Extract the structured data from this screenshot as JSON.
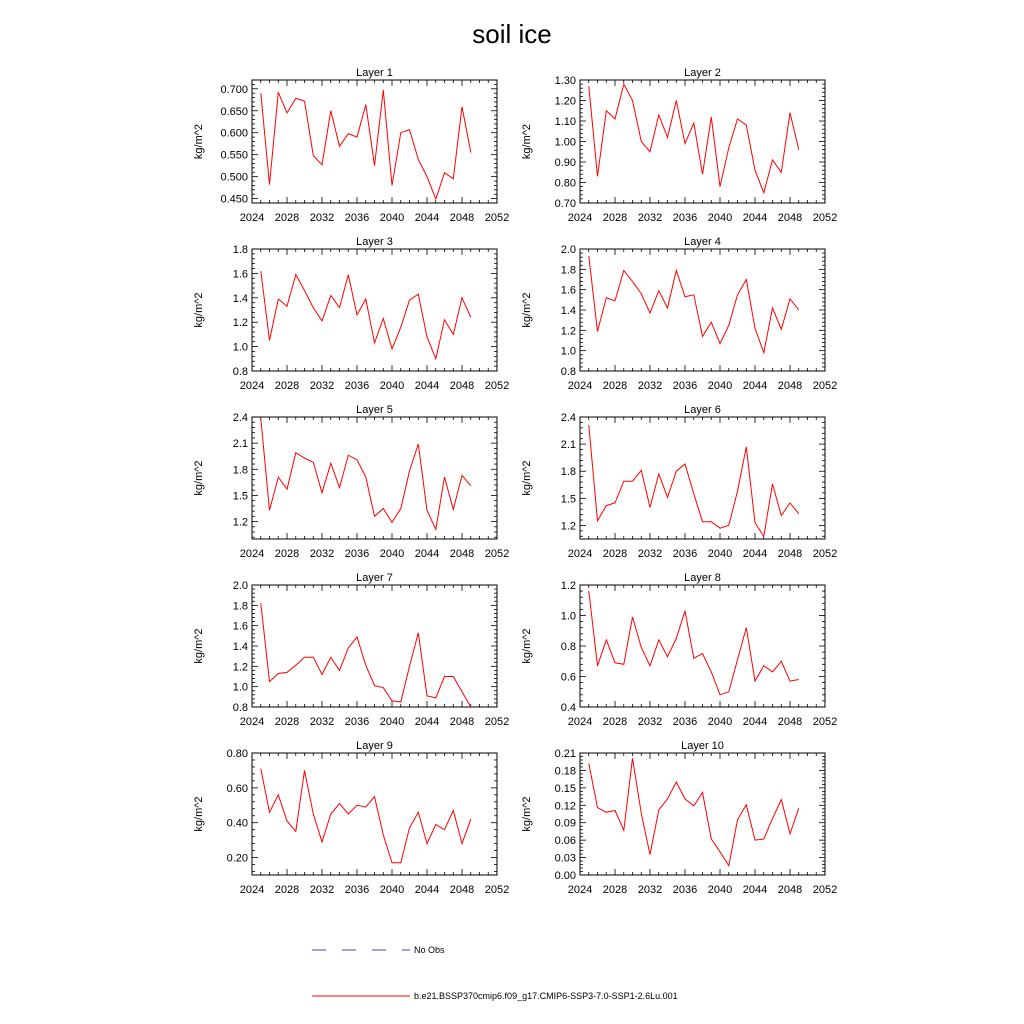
{
  "title": "soil ice",
  "colors": {
    "series": "#ff0000",
    "no_obs": "#4a4aa8",
    "axis": "#000000"
  },
  "legend": {
    "no_obs_label": "No Obs",
    "series_label": "b.e21.BSSP370cmip6.f09_g17.CMIP6-SSP3-7.0-SSP1-2.6Lu.001"
  },
  "chart_data": [
    {
      "type": "line",
      "title": "Layer 1",
      "ylabel": "kg/m^2",
      "xlim": [
        2024,
        2052
      ],
      "ylim": [
        0.44,
        0.72
      ],
      "x_ticks": [
        "2024",
        "2028",
        "2032",
        "2036",
        "2040",
        "2044",
        "2048",
        "2052"
      ],
      "y_ticks": [
        "0.450",
        "0.500",
        "0.550",
        "0.600",
        "0.650",
        "0.700"
      ],
      "series": [
        {
          "x": [
            2025,
            2026,
            2027,
            2028,
            2029,
            2030,
            2031,
            2032,
            2033,
            2034,
            2035,
            2036,
            2037,
            2038,
            2039,
            2040,
            2041,
            2042,
            2043,
            2044,
            2045,
            2046,
            2047,
            2048,
            2049
          ],
          "values": [
            0.69,
            0.482,
            0.692,
            0.645,
            0.678,
            0.672,
            0.548,
            0.527,
            0.65,
            0.569,
            0.598,
            0.59,
            0.664,
            0.525,
            0.697,
            0.48,
            0.6,
            0.607,
            0.539,
            0.5,
            0.449,
            0.509,
            0.495,
            0.659,
            0.555
          ]
        }
      ]
    },
    {
      "type": "line",
      "title": "Layer 2",
      "ylabel": "kg/m^2",
      "xlim": [
        2024,
        2052
      ],
      "ylim": [
        0.7,
        1.3
      ],
      "x_ticks": [
        "2024",
        "2028",
        "2032",
        "2036",
        "2040",
        "2044",
        "2048",
        "2052"
      ],
      "y_ticks": [
        "0.70",
        "0.80",
        "0.90",
        "1.00",
        "1.10",
        "1.20",
        "1.30"
      ],
      "series": [
        {
          "x": [
            2025,
            2026,
            2027,
            2028,
            2029,
            2030,
            2031,
            2032,
            2033,
            2034,
            2035,
            2036,
            2037,
            2038,
            2039,
            2040,
            2041,
            2042,
            2043,
            2044,
            2045,
            2046,
            2047,
            2048,
            2049
          ],
          "values": [
            1.27,
            0.83,
            1.15,
            1.11,
            1.28,
            1.2,
            1.0,
            0.95,
            1.13,
            1.02,
            1.2,
            0.99,
            1.09,
            0.84,
            1.12,
            0.78,
            0.97,
            1.11,
            1.08,
            0.86,
            0.75,
            0.91,
            0.85,
            1.14,
            0.96
          ]
        }
      ]
    },
    {
      "type": "line",
      "title": "Layer 3",
      "ylabel": "kg/m^2",
      "xlim": [
        2024,
        2052
      ],
      "ylim": [
        0.8,
        1.8
      ],
      "x_ticks": [
        "2024",
        "2028",
        "2032",
        "2036",
        "2040",
        "2044",
        "2048",
        "2052"
      ],
      "y_ticks": [
        "0.8",
        "1.0",
        "1.2",
        "1.4",
        "1.6",
        "1.8"
      ],
      "series": [
        {
          "x": [
            2025,
            2026,
            2027,
            2028,
            2029,
            2030,
            2031,
            2032,
            2033,
            2034,
            2035,
            2036,
            2037,
            2038,
            2039,
            2040,
            2041,
            2042,
            2043,
            2044,
            2045,
            2046,
            2047,
            2048,
            2049
          ],
          "values": [
            1.62,
            1.05,
            1.39,
            1.33,
            1.59,
            1.46,
            1.32,
            1.21,
            1.42,
            1.32,
            1.59,
            1.26,
            1.39,
            1.03,
            1.23,
            0.98,
            1.16,
            1.38,
            1.43,
            1.08,
            0.9,
            1.22,
            1.1,
            1.4,
            1.24
          ]
        }
      ]
    },
    {
      "type": "line",
      "title": "Layer 4",
      "ylabel": "kg/m^2",
      "xlim": [
        2024,
        2052
      ],
      "ylim": [
        0.8,
        2.0
      ],
      "x_ticks": [
        "2024",
        "2028",
        "2032",
        "2036",
        "2040",
        "2044",
        "2048",
        "2052"
      ],
      "y_ticks": [
        "0.8",
        "1.0",
        "1.2",
        "1.4",
        "1.6",
        "1.8",
        "2.0"
      ],
      "series": [
        {
          "x": [
            2025,
            2026,
            2027,
            2028,
            2029,
            2030,
            2031,
            2032,
            2033,
            2034,
            2035,
            2036,
            2037,
            2038,
            2039,
            2040,
            2041,
            2042,
            2043,
            2044,
            2045,
            2046,
            2047,
            2048,
            2049
          ],
          "values": [
            1.93,
            1.19,
            1.52,
            1.49,
            1.79,
            1.68,
            1.56,
            1.37,
            1.59,
            1.42,
            1.79,
            1.53,
            1.55,
            1.14,
            1.28,
            1.07,
            1.25,
            1.55,
            1.7,
            1.22,
            0.98,
            1.42,
            1.21,
            1.51,
            1.4
          ]
        }
      ]
    },
    {
      "type": "line",
      "title": "Layer 5",
      "ylabel": "kg/m^2",
      "xlim": [
        2024,
        2052
      ],
      "ylim": [
        1.0,
        2.4
      ],
      "x_ticks": [
        "2024",
        "2028",
        "2032",
        "2036",
        "2040",
        "2044",
        "2048",
        "2052"
      ],
      "y_ticks": [
        "1.2",
        "1.5",
        "1.8",
        "2.1",
        "2.4"
      ],
      "series": [
        {
          "x": [
            2025,
            2026,
            2027,
            2028,
            2029,
            2030,
            2031,
            2032,
            2033,
            2034,
            2035,
            2036,
            2037,
            2038,
            2039,
            2040,
            2041,
            2042,
            2043,
            2044,
            2045,
            2046,
            2047,
            2048,
            2049
          ],
          "values": [
            2.38,
            1.33,
            1.71,
            1.57,
            1.99,
            1.93,
            1.88,
            1.53,
            1.87,
            1.59,
            1.96,
            1.91,
            1.71,
            1.26,
            1.35,
            1.19,
            1.35,
            1.78,
            2.09,
            1.33,
            1.11,
            1.71,
            1.34,
            1.73,
            1.61
          ]
        }
      ]
    },
    {
      "type": "line",
      "title": "Layer 6",
      "ylabel": "kg/m^2",
      "xlim": [
        2024,
        2052
      ],
      "ylim": [
        1.05,
        2.4
      ],
      "x_ticks": [
        "2024",
        "2028",
        "2032",
        "2036",
        "2040",
        "2044",
        "2048",
        "2052"
      ],
      "y_ticks": [
        "1.2",
        "1.5",
        "1.8",
        "2.1",
        "2.4"
      ],
      "series": [
        {
          "x": [
            2025,
            2026,
            2027,
            2028,
            2029,
            2030,
            2031,
            2032,
            2033,
            2034,
            2035,
            2036,
            2037,
            2038,
            2039,
            2040,
            2041,
            2042,
            2043,
            2044,
            2045,
            2046,
            2047,
            2048,
            2049
          ],
          "values": [
            2.31,
            1.25,
            1.42,
            1.45,
            1.69,
            1.69,
            1.81,
            1.4,
            1.77,
            1.51,
            1.8,
            1.88,
            1.55,
            1.24,
            1.24,
            1.17,
            1.2,
            1.58,
            2.07,
            1.23,
            1.08,
            1.66,
            1.31,
            1.45,
            1.33
          ]
        }
      ]
    },
    {
      "type": "line",
      "title": "Layer 7",
      "ylabel": "kg/m^2",
      "xlim": [
        2024,
        2052
      ],
      "ylim": [
        0.8,
        2.0
      ],
      "x_ticks": [
        "2024",
        "2028",
        "2032",
        "2036",
        "2040",
        "2044",
        "2048",
        "2052"
      ],
      "y_ticks": [
        "0.8",
        "1.0",
        "1.2",
        "1.4",
        "1.6",
        "1.8",
        "2.0"
      ],
      "series": [
        {
          "x": [
            2025,
            2026,
            2027,
            2028,
            2029,
            2030,
            2031,
            2032,
            2033,
            2034,
            2035,
            2036,
            2037,
            2038,
            2039,
            2040,
            2041,
            2042,
            2043,
            2044,
            2045,
            2046,
            2047,
            2048,
            2049
          ],
          "values": [
            1.82,
            1.05,
            1.13,
            1.14,
            1.21,
            1.29,
            1.29,
            1.12,
            1.29,
            1.16,
            1.38,
            1.49,
            1.21,
            1.01,
            0.99,
            0.86,
            0.85,
            1.2,
            1.53,
            0.91,
            0.89,
            1.1,
            1.1,
            0.95,
            0.8
          ]
        }
      ]
    },
    {
      "type": "line",
      "title": "Layer 8",
      "ylabel": "kg/m^2",
      "xlim": [
        2024,
        2052
      ],
      "ylim": [
        0.4,
        1.2
      ],
      "x_ticks": [
        "2024",
        "2028",
        "2032",
        "2036",
        "2040",
        "2044",
        "2048",
        "2052"
      ],
      "y_ticks": [
        "0.4",
        "0.6",
        "0.8",
        "1.0",
        "1.2"
      ],
      "series": [
        {
          "x": [
            2025,
            2026,
            2027,
            2028,
            2029,
            2030,
            2031,
            2032,
            2033,
            2034,
            2035,
            2036,
            2037,
            2038,
            2039,
            2040,
            2041,
            2042,
            2043,
            2044,
            2045,
            2046,
            2047,
            2048,
            2049
          ],
          "values": [
            1.16,
            0.67,
            0.84,
            0.69,
            0.68,
            0.99,
            0.79,
            0.67,
            0.84,
            0.73,
            0.85,
            1.03,
            0.72,
            0.75,
            0.63,
            0.48,
            0.5,
            0.71,
            0.92,
            0.57,
            0.67,
            0.63,
            0.7,
            0.57,
            0.58
          ]
        }
      ]
    },
    {
      "type": "line",
      "title": "Layer 9",
      "ylabel": "kg/m^2",
      "xlim": [
        2024,
        2052
      ],
      "ylim": [
        0.1,
        0.8
      ],
      "x_ticks": [
        "2024",
        "2028",
        "2032",
        "2036",
        "2040",
        "2044",
        "2048",
        "2052"
      ],
      "y_ticks": [
        "0.20",
        "0.40",
        "0.60",
        "0.80"
      ],
      "series": [
        {
          "x": [
            2025,
            2026,
            2027,
            2028,
            2029,
            2030,
            2031,
            2032,
            2033,
            2034,
            2035,
            2036,
            2037,
            2038,
            2039,
            2040,
            2041,
            2042,
            2043,
            2044,
            2045,
            2046,
            2047,
            2048,
            2049
          ],
          "values": [
            0.71,
            0.46,
            0.56,
            0.41,
            0.35,
            0.7,
            0.45,
            0.29,
            0.45,
            0.51,
            0.45,
            0.5,
            0.49,
            0.55,
            0.33,
            0.17,
            0.17,
            0.37,
            0.46,
            0.28,
            0.39,
            0.36,
            0.47,
            0.28,
            0.42
          ]
        }
      ]
    },
    {
      "type": "line",
      "title": "Layer 10",
      "ylabel": "kg/m^2",
      "xlim": [
        2024,
        2052
      ],
      "ylim": [
        0.0,
        0.21
      ],
      "x_ticks": [
        "2024",
        "2028",
        "2032",
        "2036",
        "2040",
        "2044",
        "2048",
        "2052"
      ],
      "y_ticks": [
        "0.00",
        "0.03",
        "0.06",
        "0.09",
        "0.12",
        "0.15",
        "0.18",
        "0.21"
      ],
      "series": [
        {
          "x": [
            2025,
            2026,
            2027,
            2028,
            2029,
            2030,
            2031,
            2032,
            2033,
            2034,
            2035,
            2036,
            2037,
            2038,
            2039,
            2040,
            2041,
            2042,
            2043,
            2044,
            2045,
            2046,
            2047,
            2048,
            2049
          ],
          "values": [
            0.192,
            0.116,
            0.108,
            0.111,
            0.077,
            0.201,
            0.106,
            0.035,
            0.112,
            0.131,
            0.16,
            0.131,
            0.119,
            0.142,
            0.062,
            0.04,
            0.016,
            0.095,
            0.121,
            0.06,
            0.062,
            0.097,
            0.13,
            0.071,
            0.115
          ]
        }
      ]
    }
  ]
}
